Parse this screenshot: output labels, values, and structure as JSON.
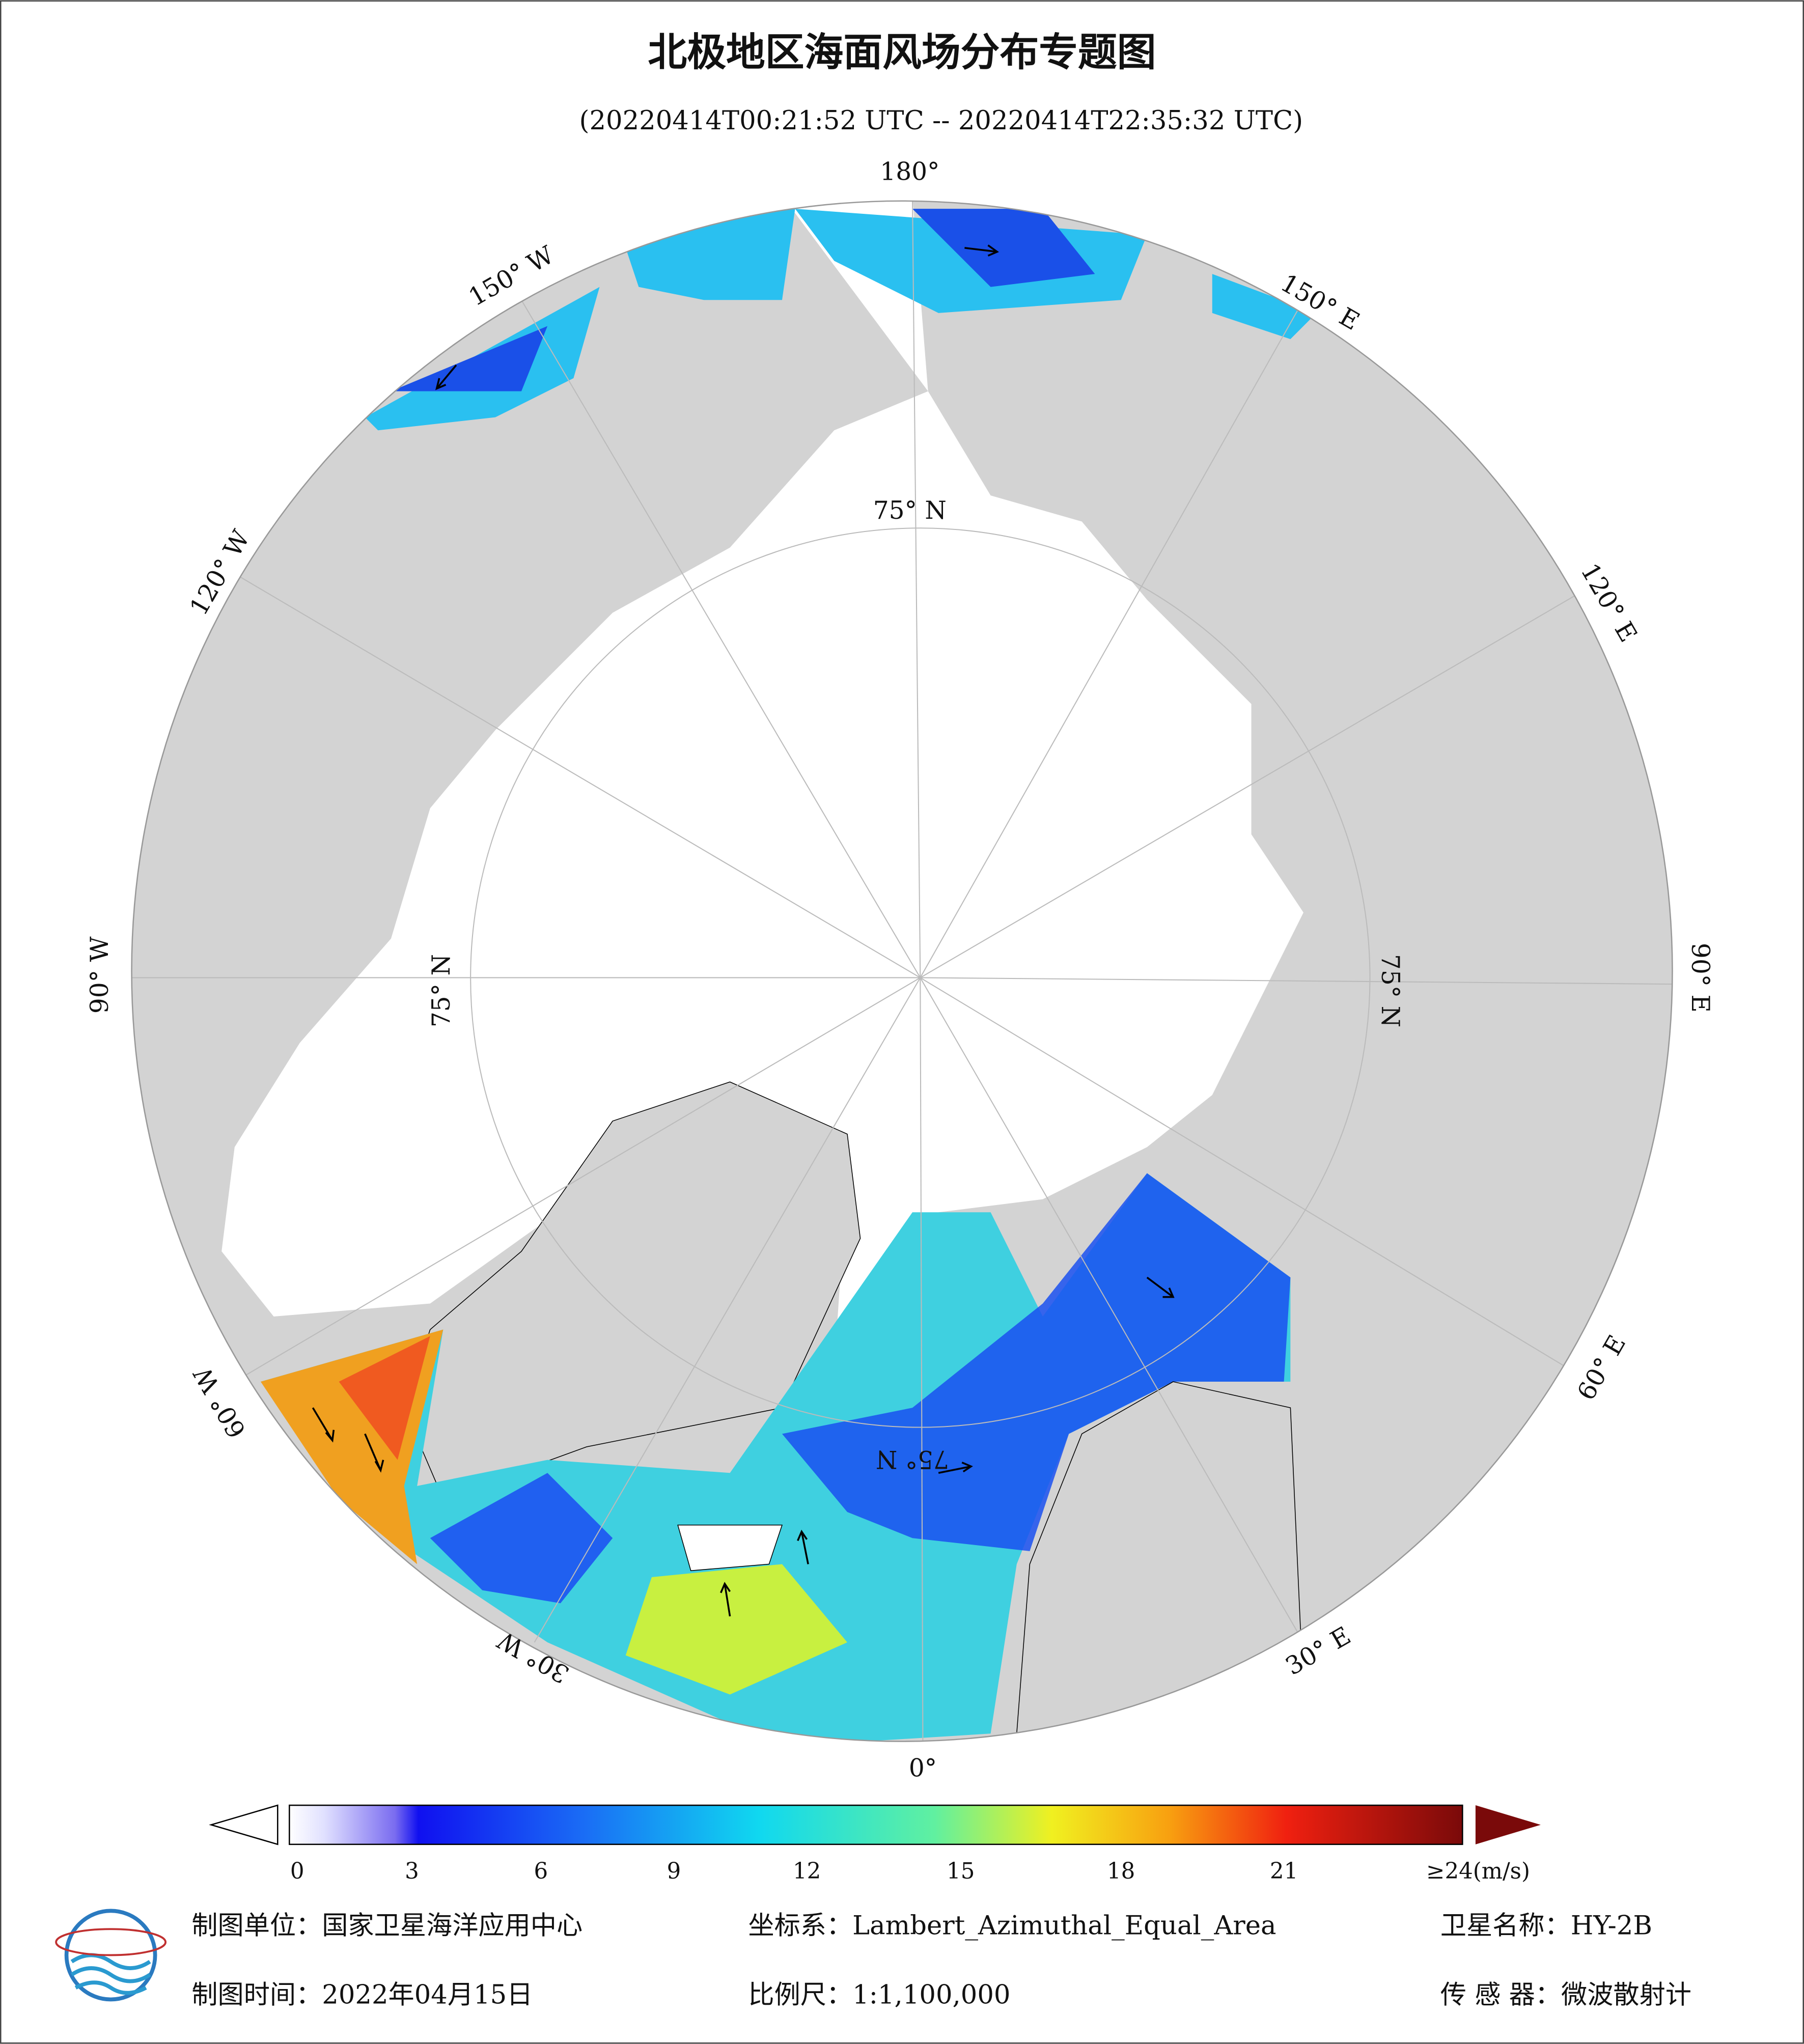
{
  "header": {
    "title": "北极地区海面风场分布专题图",
    "subtitle": "(20220414T00:21:52 UTC -- 20220414T22:35:32 UTC)"
  },
  "map": {
    "longitude_labels": [
      "180°",
      "150° E",
      "120° E",
      "90° E",
      "60° E",
      "30° E",
      "0°",
      "30° W",
      "60° W",
      "90° W",
      "120° W",
      "150° W"
    ],
    "latitude_labels": [
      "75° N",
      "75° N",
      "75° N",
      "75° N"
    ]
  },
  "colorbar": {
    "ticks": [
      0,
      3,
      6,
      9,
      12,
      15,
      18,
      21
    ],
    "end_label": "≥24(m/s)"
  },
  "footer": {
    "unit": "制图单位：国家卫星海洋应用中心",
    "projection": "坐标系：Lambert_Azimuthal_Equal_Area",
    "satellite": "卫星名称：HY-2B",
    "date": "制图时间：2022年04月15日",
    "scale": "比例尺：1:1,100,000",
    "sensor": "传 感 器：微波散射计"
  }
}
